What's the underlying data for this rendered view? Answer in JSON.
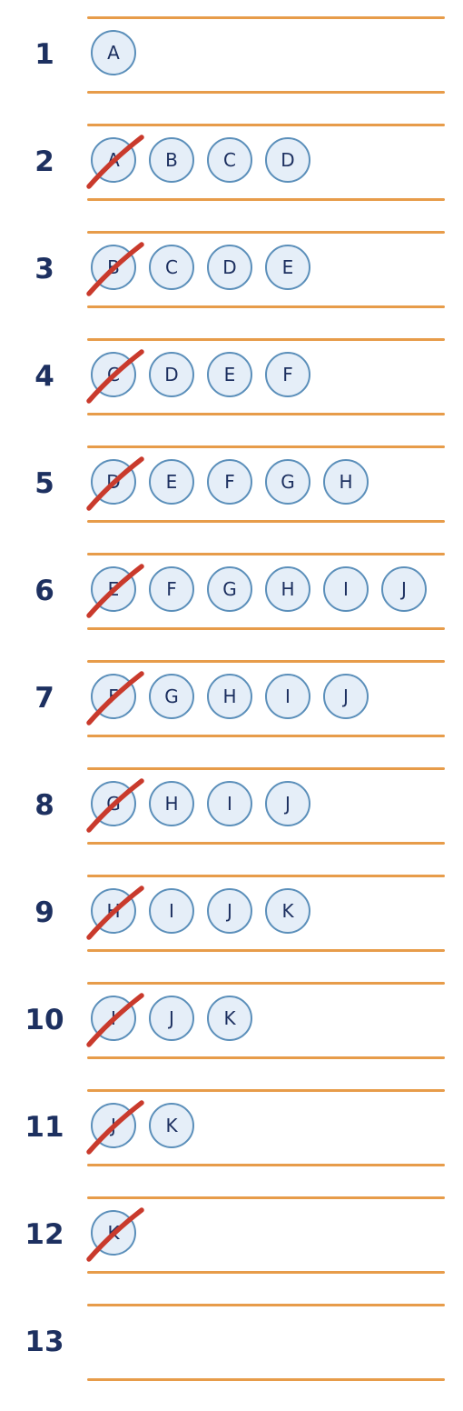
{
  "colors": {
    "rule": "#e79c4a",
    "token_fill": "#e5eef8",
    "token_border": "#5b8fba",
    "ink": "#1d3060",
    "strike": "#c93a2c"
  },
  "icons": {
    "strike": "diagonal-strike-icon"
  },
  "rows": [
    {
      "number": "1",
      "tokens": [
        {
          "letter": "A",
          "crossed": false
        }
      ]
    },
    {
      "number": "2",
      "tokens": [
        {
          "letter": "A",
          "crossed": true
        },
        {
          "letter": "B",
          "crossed": false
        },
        {
          "letter": "C",
          "crossed": false
        },
        {
          "letter": "D",
          "crossed": false
        }
      ]
    },
    {
      "number": "3",
      "tokens": [
        {
          "letter": "B",
          "crossed": true
        },
        {
          "letter": "C",
          "crossed": false
        },
        {
          "letter": "D",
          "crossed": false
        },
        {
          "letter": "E",
          "crossed": false
        }
      ]
    },
    {
      "number": "4",
      "tokens": [
        {
          "letter": "C",
          "crossed": true
        },
        {
          "letter": "D",
          "crossed": false
        },
        {
          "letter": "E",
          "crossed": false
        },
        {
          "letter": "F",
          "crossed": false
        }
      ]
    },
    {
      "number": "5",
      "tokens": [
        {
          "letter": "D",
          "crossed": true
        },
        {
          "letter": "E",
          "crossed": false
        },
        {
          "letter": "F",
          "crossed": false
        },
        {
          "letter": "G",
          "crossed": false
        },
        {
          "letter": "H",
          "crossed": false
        }
      ]
    },
    {
      "number": "6",
      "tokens": [
        {
          "letter": "E",
          "crossed": true
        },
        {
          "letter": "F",
          "crossed": false
        },
        {
          "letter": "G",
          "crossed": false
        },
        {
          "letter": "H",
          "crossed": false
        },
        {
          "letter": "I",
          "crossed": false
        },
        {
          "letter": "J",
          "crossed": false
        }
      ]
    },
    {
      "number": "7",
      "tokens": [
        {
          "letter": "F",
          "crossed": true
        },
        {
          "letter": "G",
          "crossed": false
        },
        {
          "letter": "H",
          "crossed": false
        },
        {
          "letter": "I",
          "crossed": false
        },
        {
          "letter": "J",
          "crossed": false
        }
      ]
    },
    {
      "number": "8",
      "tokens": [
        {
          "letter": "G",
          "crossed": true
        },
        {
          "letter": "H",
          "crossed": false
        },
        {
          "letter": "I",
          "crossed": false
        },
        {
          "letter": "J",
          "crossed": false
        }
      ]
    },
    {
      "number": "9",
      "tokens": [
        {
          "letter": "H",
          "crossed": true
        },
        {
          "letter": "I",
          "crossed": false
        },
        {
          "letter": "J",
          "crossed": false
        },
        {
          "letter": "K",
          "crossed": false
        }
      ]
    },
    {
      "number": "10",
      "tokens": [
        {
          "letter": "I",
          "crossed": true
        },
        {
          "letter": "J",
          "crossed": false
        },
        {
          "letter": "K",
          "crossed": false
        }
      ]
    },
    {
      "number": "11",
      "tokens": [
        {
          "letter": "J",
          "crossed": true
        },
        {
          "letter": "K",
          "crossed": false
        }
      ]
    },
    {
      "number": "12",
      "tokens": [
        {
          "letter": "K",
          "crossed": true
        }
      ]
    },
    {
      "number": "13",
      "tokens": []
    }
  ]
}
